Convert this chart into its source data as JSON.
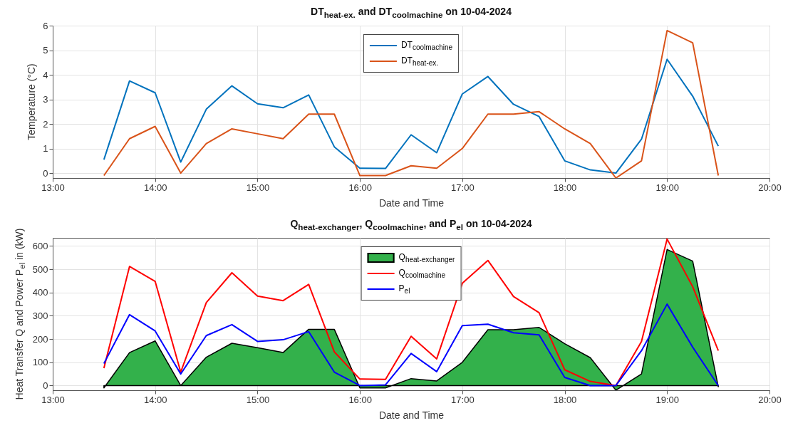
{
  "chart_data": [
    {
      "type": "line",
      "title": "DT$_{heat-ex.}$ and DT$_{coolmachine}$ on 10-04-2024",
      "xlabel": "Date and Time",
      "ylabel": "Temperature (°C)",
      "x": [
        13.5,
        13.75,
        14,
        14.25,
        14.5,
        14.75,
        15,
        15.25,
        15.5,
        15.75,
        16,
        16.25,
        16.5,
        16.75,
        17,
        17.25,
        17.5,
        17.75,
        18,
        18.25,
        18.5,
        18.75,
        19,
        19.25,
        19.5
      ],
      "xlim": [
        13,
        20
      ],
      "xticks": [
        {
          "value": 13,
          "label": "13:00"
        },
        {
          "value": 14,
          "label": "14:00"
        },
        {
          "value": 15,
          "label": "15:00"
        },
        {
          "value": 16,
          "label": "16:00"
        },
        {
          "value": 17,
          "label": "17:00"
        },
        {
          "value": 18,
          "label": "18:00"
        },
        {
          "value": 19,
          "label": "19:00"
        },
        {
          "value": 20,
          "label": "20:00"
        }
      ],
      "ylim": [
        -0.2,
        6
      ],
      "yticks": [
        0,
        1,
        2,
        3,
        4,
        5,
        6
      ],
      "grid": true,
      "legend": "top",
      "series": [
        {
          "name": "DT$_{coolmachine}$",
          "color": "#0072bd",
          "values": [
            0.55,
            3.75,
            3.27,
            0.45,
            2.6,
            3.55,
            2.82,
            2.66,
            3.18,
            1.07,
            0.2,
            0.19,
            1.56,
            0.83,
            3.22,
            3.93,
            2.8,
            2.3,
            0.5,
            0.13,
            0.0,
            1.38,
            4.63,
            3.13,
            1.1
          ]
        },
        {
          "name": "DT$_{heat-ex.}$",
          "color": "#d95319",
          "values": [
            -0.1,
            1.4,
            1.9,
            0.0,
            1.2,
            1.8,
            1.6,
            1.4,
            2.4,
            2.4,
            -0.1,
            -0.1,
            0.3,
            0.2,
            1.0,
            2.4,
            2.4,
            2.5,
            1.8,
            1.2,
            -0.2,
            0.5,
            5.8,
            5.3,
            -0.1
          ]
        }
      ]
    },
    {
      "type": "line",
      "title": "Q$_{heat-exchanger}$, Q$_{coolmachine}$, and P$_{el}$ on 10-04-2024",
      "xlabel": "Date and Time",
      "ylabel": "Heat Transfer Q and Power P$_{el}$ in (kW)",
      "x": [
        13.5,
        13.75,
        14,
        14.25,
        14.5,
        14.75,
        15,
        15.25,
        15.5,
        15.75,
        16,
        16.25,
        16.5,
        16.75,
        17,
        17.25,
        17.5,
        17.75,
        18,
        18.25,
        18.5,
        18.75,
        19,
        19.25,
        19.5
      ],
      "xlim": [
        13,
        20
      ],
      "xticks": [
        {
          "value": 13,
          "label": "13:00"
        },
        {
          "value": 14,
          "label": "14:00"
        },
        {
          "value": 15,
          "label": "15:00"
        },
        {
          "value": 16,
          "label": "16:00"
        },
        {
          "value": 17,
          "label": "17:00"
        },
        {
          "value": 18,
          "label": "18:00"
        },
        {
          "value": 19,
          "label": "19:00"
        },
        {
          "value": 20,
          "label": "20:00"
        }
      ],
      "ylim": [
        -20,
        635
      ],
      "yticks": [
        0,
        100,
        200,
        300,
        400,
        500,
        600
      ],
      "grid": true,
      "legend": "top",
      "series": [
        {
          "name": "Q$_{heat-exchanger}$",
          "type": "area",
          "color": "#33b14b",
          "values": [
            -10,
            142,
            192,
            0,
            122,
            182,
            163,
            142,
            242,
            242,
            -10,
            -10,
            30,
            20,
            100,
            240,
            240,
            250,
            180,
            120,
            -20,
            50,
            585,
            535,
            -5
          ]
        },
        {
          "name": "Q$_{coolmachine}$",
          "color": "#ff0000",
          "values": [
            75,
            512,
            448,
            58,
            357,
            485,
            385,
            365,
            435,
            145,
            28,
            27,
            212,
            115,
            440,
            538,
            383,
            313,
            68,
            18,
            0,
            190,
            630,
            425,
            150
          ]
        },
        {
          "name": "P$_{el}$",
          "color": "#0000ff",
          "values": [
            95,
            305,
            235,
            50,
            215,
            262,
            190,
            197,
            232,
            58,
            0,
            3,
            138,
            60,
            258,
            264,
            227,
            218,
            35,
            0,
            0,
            150,
            350,
            165,
            0
          ]
        }
      ]
    }
  ]
}
